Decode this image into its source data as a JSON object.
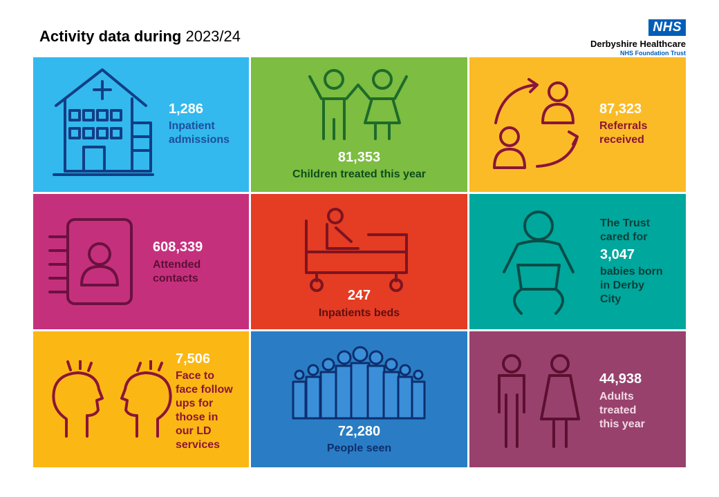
{
  "header": {
    "title_bold": "Activity data during",
    "title_rest": " 2023/24"
  },
  "logo": {
    "badge": "NHS",
    "org": "Derbyshire Healthcare",
    "trust": "NHS Foundation Trust"
  },
  "tiles": [
    {
      "number": "1,286",
      "label": "Inpatient\nadmissions",
      "color": "#33b9ed",
      "icon": "hospital-icon"
    },
    {
      "number": "81,353",
      "label": "Children treated this year",
      "color": "#7cbd42",
      "icon": "children-icon"
    },
    {
      "number": "87,323",
      "label": "Referrals\nreceived",
      "color": "#fbbb27",
      "icon": "referral-cycle-icon"
    },
    {
      "number": "608,339",
      "label": "Attended\ncontacts",
      "color": "#c5307d",
      "icon": "contact-book-icon"
    },
    {
      "number": "247",
      "label": "Inpatients beds",
      "color": "#e53c24",
      "icon": "hospital-bed-icon"
    },
    {
      "pre": "The Trust\ncared for",
      "number": "3,047",
      "label": "babies born\nin Derby\nCity",
      "color": "#00a79d",
      "icon": "baby-icon"
    },
    {
      "number": "7,506",
      "label": "Face to\nface follow\nups for\nthose in\nour LD\nservices",
      "color": "#fbb713",
      "icon": "two-heads-icon"
    },
    {
      "number": "72,280",
      "label": "People seen",
      "color": "#2a7dc4",
      "icon": "crowd-icon"
    },
    {
      "number": "44,938",
      "label": "Adults\ntreated\nthis year",
      "color": "#98416d",
      "icon": "adults-icon"
    }
  ]
}
